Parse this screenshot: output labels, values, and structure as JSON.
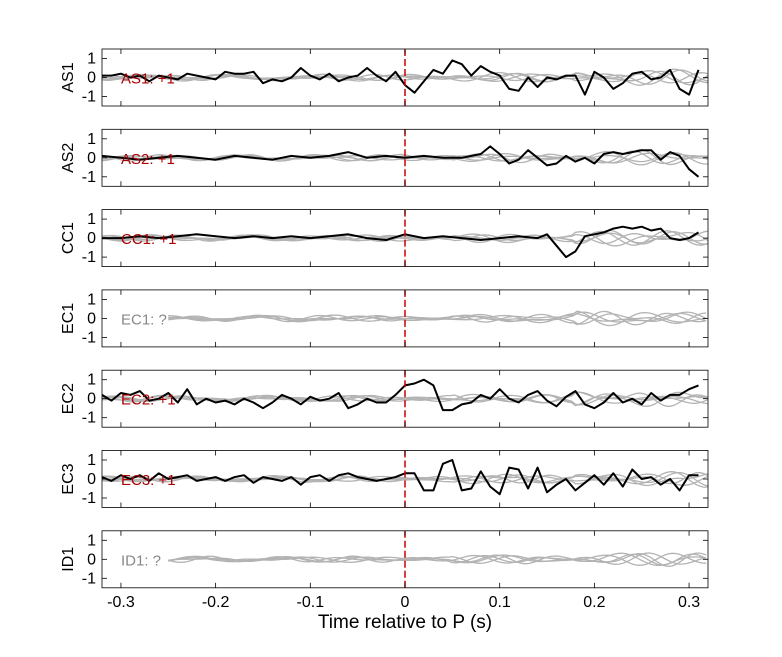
{
  "figure": {
    "xlabel": "Time relative to P (s)",
    "background": "#ffffff",
    "colors": {
      "trace": "#000000",
      "background_traces": "#b3b3b3",
      "marker": "#cc0000",
      "label_positive": "#aa0000",
      "label_unknown": "#888888",
      "axis": "#000000"
    }
  },
  "chart_data": {
    "type": "line",
    "layout": "stacked panels",
    "xlim": [
      -0.32,
      0.32
    ],
    "ylim": [
      -1.5,
      1.5
    ],
    "x_ticks": [
      -0.3,
      -0.2,
      -0.1,
      0,
      0.1,
      0.2,
      0.3
    ],
    "x_tick_labels": [
      "-0.3",
      "-0.2",
      "-0.1",
      "0",
      "0.1",
      "0.2",
      "0.3"
    ],
    "y_ticks": [
      -1,
      0,
      1
    ],
    "y_tick_labels": [
      "-1",
      "0",
      "1"
    ],
    "xlabel": "Time relative to P (s)",
    "vertical_marker": {
      "x": 0,
      "style": "dashed",
      "color": "#cc0000"
    },
    "panels": [
      {
        "ylabel": "AS1",
        "annotation": "AS1: +1",
        "label_status": "positive",
        "trace": {
          "x": [
            -0.32,
            -0.31,
            -0.3,
            -0.29,
            -0.28,
            -0.27,
            -0.26,
            -0.25,
            -0.24,
            -0.23,
            -0.22,
            -0.21,
            -0.2,
            -0.19,
            -0.18,
            -0.17,
            -0.16,
            -0.15,
            -0.14,
            -0.13,
            -0.12,
            -0.11,
            -0.1,
            -0.09,
            -0.08,
            -0.07,
            -0.06,
            -0.05,
            -0.04,
            -0.03,
            -0.02,
            -0.01,
            0,
            0.01,
            0.02,
            0.03,
            0.04,
            0.05,
            0.06,
            0.07,
            0.08,
            0.09,
            0.1,
            0.11,
            0.12,
            0.13,
            0.14,
            0.15,
            0.16,
            0.17,
            0.18,
            0.19,
            0.2,
            0.21,
            0.22,
            0.23,
            0.24,
            0.25,
            0.26,
            0.27,
            0.28,
            0.29,
            0.3,
            0.31
          ],
          "y": [
            0.1,
            0.1,
            0.2,
            0.0,
            0.1,
            -0.2,
            0.1,
            0.0,
            -0.1,
            0.2,
            0.1,
            0.0,
            -0.1,
            0.3,
            0.2,
            0.2,
            0.3,
            -0.3,
            -0.1,
            -0.2,
            0.0,
            0.5,
            0.1,
            -0.1,
            0.2,
            -0.2,
            0.0,
            0.1,
            0.5,
            0.1,
            -0.2,
            0.3,
            -0.4,
            -0.8,
            -0.2,
            0.4,
            0.2,
            0.9,
            0.7,
            0.1,
            0.6,
            0.3,
            0.1,
            -0.6,
            -0.7,
            0.0,
            -0.5,
            0.0,
            -0.1,
            0.1,
            0.1,
            -0.9,
            0.3,
            0.0,
            -0.6,
            -0.3,
            0.2,
            0.3,
            -0.1,
            0.0,
            0.4,
            -0.6,
            -0.9,
            0.4
          ]
        }
      },
      {
        "ylabel": "AS2",
        "annotation": "AS2: +1",
        "label_status": "positive",
        "trace": {
          "x": [
            -0.32,
            -0.3,
            -0.28,
            -0.26,
            -0.24,
            -0.22,
            -0.2,
            -0.18,
            -0.16,
            -0.14,
            -0.12,
            -0.1,
            -0.08,
            -0.06,
            -0.04,
            -0.02,
            0,
            0.02,
            0.04,
            0.06,
            0.08,
            0.09,
            0.1,
            0.11,
            0.12,
            0.13,
            0.14,
            0.15,
            0.16,
            0.17,
            0.18,
            0.19,
            0.2,
            0.21,
            0.22,
            0.23,
            0.24,
            0.25,
            0.26,
            0.27,
            0.28,
            0.29,
            0.3,
            0.31
          ],
          "y": [
            0.1,
            0.0,
            -0.1,
            0.0,
            0.1,
            0.0,
            -0.1,
            0.1,
            0.0,
            -0.1,
            0.1,
            0.0,
            0.1,
            0.3,
            0.0,
            0.1,
            0.0,
            0.1,
            0.0,
            0.0,
            0.2,
            0.6,
            0.2,
            -0.3,
            -0.1,
            0.4,
            0.0,
            -0.4,
            -0.3,
            0.1,
            -0.2,
            0.0,
            -0.3,
            0.2,
            0.3,
            0.2,
            0.3,
            0.4,
            0.4,
            -0.1,
            0.3,
            0.1,
            -0.6,
            -1.0
          ]
        }
      },
      {
        "ylabel": "CC1",
        "annotation": "CC1: +1",
        "label_status": "positive",
        "trace": {
          "x": [
            -0.32,
            -0.3,
            -0.28,
            -0.26,
            -0.24,
            -0.22,
            -0.2,
            -0.18,
            -0.16,
            -0.14,
            -0.12,
            -0.1,
            -0.08,
            -0.06,
            -0.04,
            -0.02,
            0,
            0.02,
            0.04,
            0.06,
            0.08,
            0.1,
            0.12,
            0.14,
            0.15,
            0.16,
            0.17,
            0.18,
            0.19,
            0.2,
            0.21,
            0.22,
            0.23,
            0.24,
            0.25,
            0.26,
            0.27,
            0.28,
            0.29,
            0.3,
            0.31
          ],
          "y": [
            0.0,
            0.0,
            0.1,
            0.0,
            0.1,
            0.2,
            0.1,
            0.0,
            0.1,
            0.0,
            0.1,
            0.0,
            0.1,
            0.2,
            0.0,
            -0.1,
            0.2,
            0.0,
            0.1,
            0.0,
            -0.1,
            0.0,
            0.1,
            0.0,
            0.2,
            -0.4,
            -1.0,
            -0.7,
            0.1,
            0.2,
            0.3,
            0.5,
            0.6,
            0.5,
            0.6,
            0.4,
            0.5,
            0.0,
            -0.1,
            0.0,
            0.3
          ]
        }
      },
      {
        "ylabel": "EC1",
        "annotation": "EC1: ?",
        "label_status": "unknown",
        "trace": null
      },
      {
        "ylabel": "EC2",
        "annotation": "EC2: +1",
        "label_status": "positive",
        "trace": {
          "x": [
            -0.32,
            -0.31,
            -0.3,
            -0.29,
            -0.28,
            -0.27,
            -0.26,
            -0.25,
            -0.24,
            -0.23,
            -0.22,
            -0.21,
            -0.2,
            -0.19,
            -0.18,
            -0.17,
            -0.16,
            -0.15,
            -0.14,
            -0.13,
            -0.12,
            -0.11,
            -0.1,
            -0.09,
            -0.08,
            -0.07,
            -0.06,
            -0.05,
            -0.04,
            -0.03,
            -0.02,
            -0.01,
            0,
            0.01,
            0.02,
            0.03,
            0.04,
            0.05,
            0.06,
            0.07,
            0.08,
            0.09,
            0.1,
            0.11,
            0.12,
            0.13,
            0.14,
            0.15,
            0.16,
            0.17,
            0.18,
            0.19,
            0.2,
            0.21,
            0.22,
            0.23,
            0.24,
            0.25,
            0.26,
            0.27,
            0.28,
            0.29,
            0.3,
            0.31
          ],
          "y": [
            0.2,
            -0.1,
            0.3,
            0.2,
            0.4,
            -0.1,
            0.0,
            0.3,
            -0.2,
            0.5,
            -0.3,
            0.0,
            -0.2,
            -0.1,
            -0.3,
            0.0,
            -0.2,
            -0.5,
            -0.2,
            0.2,
            0.0,
            -0.3,
            0.1,
            -0.1,
            0.0,
            0.3,
            -0.5,
            -0.3,
            0.0,
            -0.2,
            -0.2,
            0.2,
            0.7,
            0.8,
            1.0,
            0.7,
            -0.6,
            -0.6,
            -0.3,
            -0.2,
            0.2,
            0.0,
            0.5,
            0.0,
            -0.2,
            0.2,
            0.4,
            -0.1,
            -0.4,
            0.1,
            0.4,
            -0.3,
            -0.5,
            -0.2,
            0.3,
            -0.2,
            0.0,
            -0.3,
            0.3,
            -0.1,
            0.2,
            0.2,
            0.5,
            0.7
          ]
        }
      },
      {
        "ylabel": "EC3",
        "annotation": "EC3: +1",
        "label_status": "positive",
        "trace": {
          "x": [
            -0.32,
            -0.31,
            -0.3,
            -0.29,
            -0.28,
            -0.27,
            -0.26,
            -0.25,
            -0.24,
            -0.23,
            -0.22,
            -0.21,
            -0.2,
            -0.19,
            -0.18,
            -0.17,
            -0.16,
            -0.15,
            -0.14,
            -0.13,
            -0.12,
            -0.11,
            -0.1,
            -0.09,
            -0.08,
            -0.07,
            -0.06,
            -0.05,
            -0.04,
            -0.03,
            -0.02,
            -0.01,
            0,
            0.01,
            0.02,
            0.03,
            0.04,
            0.05,
            0.06,
            0.07,
            0.08,
            0.09,
            0.1,
            0.11,
            0.12,
            0.13,
            0.14,
            0.15,
            0.16,
            0.17,
            0.18,
            0.19,
            0.2,
            0.21,
            0.22,
            0.23,
            0.24,
            0.25,
            0.26,
            0.27,
            0.28,
            0.29,
            0.3,
            0.31
          ],
          "y": [
            0.1,
            -0.1,
            0.2,
            0.0,
            0.2,
            -0.1,
            0.3,
            0.0,
            0.1,
            0.2,
            -0.1,
            0.0,
            0.1,
            -0.1,
            0.1,
            0.2,
            -0.2,
            0.1,
            0.0,
            -0.1,
            0.1,
            -0.3,
            0.1,
            0.2,
            -0.1,
            0.2,
            0.3,
            0.1,
            0.0,
            -0.1,
            0.0,
            0.1,
            0.3,
            0.3,
            -0.6,
            -0.6,
            0.8,
            1.0,
            -0.6,
            -0.5,
            0.4,
            -0.4,
            -0.8,
            0.6,
            0.5,
            -0.5,
            0.6,
            -0.7,
            -0.3,
            0.0,
            -0.6,
            -0.2,
            0.2,
            -0.3,
            0.3,
            -0.4,
            0.5,
            0.0,
            0.1,
            -0.3,
            0.0,
            -0.6,
            0.2,
            0.2
          ]
        }
      },
      {
        "ylabel": "ID1",
        "annotation": "ID1: ?",
        "label_status": "unknown",
        "trace": null
      }
    ]
  }
}
